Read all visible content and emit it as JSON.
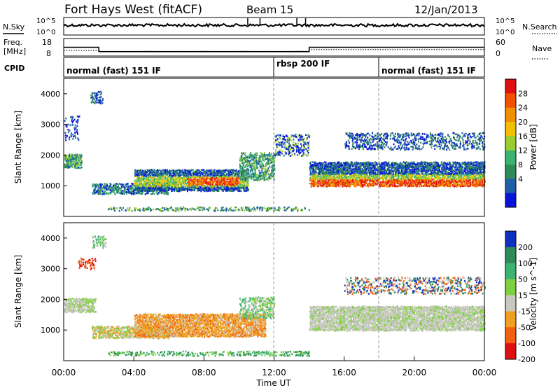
{
  "header": {
    "title": "Fort Hays West (fitACF)",
    "beam": "Beam 15",
    "date": "12/Jan/2013"
  },
  "noise_panel": {
    "left_label": "N.Sky",
    "left_ticks": [
      "10^5",
      "10^0"
    ],
    "right_ticks": [
      "10^5",
      "10^0"
    ],
    "right_label": "N.Search"
  },
  "freq_panel": {
    "label_line1": "Freq.",
    "label_line2": "[MHz]",
    "left_ticks": [
      "18",
      "8"
    ],
    "right_ticks": [
      "60",
      "0"
    ],
    "right_label": "Nave",
    "cpid_label": "CPID"
  },
  "cpid_segments": [
    {
      "label": "normal (fast) 151 IF",
      "start_hour": 0
    },
    {
      "label": "rbsp 200 IF",
      "start_hour": 12
    },
    {
      "label": "normal (fast) 151 IF",
      "start_hour": 18
    }
  ],
  "range_axis": {
    "label": "Slant Range [km]",
    "ticks": [
      "4000",
      "3000",
      "2000",
      "1000"
    ]
  },
  "time_axis": {
    "label": "Time UT",
    "ticks": [
      "00:00",
      "04:00",
      "08:00",
      "12:00",
      "16:00",
      "20:00",
      "00:00"
    ]
  },
  "power_scale": {
    "label": "Power [dB]",
    "ticks": [
      "28",
      "24",
      "20",
      "16",
      "12",
      "8",
      "4"
    ],
    "colors": [
      "#e01010",
      "#f05000",
      "#f09000",
      "#f0c000",
      "#9acd32",
      "#3cb371",
      "#2e8b57",
      "#1e5fa8",
      "#0a14d8"
    ]
  },
  "velocity_scale": {
    "label": "Velocity [m s^-1]",
    "ticks": [
      "200",
      "100",
      "50",
      "15",
      "-15",
      "-50",
      "-100",
      "-200"
    ],
    "colors": [
      "#1030c0",
      "#2e8b57",
      "#3cb371",
      "#7fd040",
      "#c8c8c0",
      "#f0a020",
      "#f06010",
      "#e01010"
    ]
  },
  "chart_data": [
    {
      "type": "line",
      "title": "Fort Hays West (fitACF)",
      "xlabel": "Time UT",
      "x_range_hours": [
        0,
        24
      ],
      "series": [
        {
          "name": "N.Sky",
          "scale": "log",
          "range": [
            1,
            100000
          ]
        },
        {
          "name": "N.Search",
          "range": [
            1,
            100000
          ]
        }
      ]
    },
    {
      "type": "line",
      "xlabel": "Time UT",
      "ylabel": "Freq. [MHz]",
      "x": [
        0,
        2,
        2.01,
        14,
        14.01,
        24
      ],
      "series": [
        {
          "name": "Freq.",
          "values": [
            13,
            13,
            10.5,
            10.5,
            13,
            13
          ],
          "ylim": [
            8,
            18
          ]
        },
        {
          "name": "Nave",
          "values": [
            19,
            19,
            16,
            16,
            22,
            22
          ],
          "ylim": [
            0,
            60
          ]
        }
      ]
    },
    {
      "type": "heatmap",
      "title": "Power [dB]",
      "xlabel": "Time UT",
      "ylabel": "Slant Range [km]",
      "xlim": [
        0,
        24
      ],
      "ylim": [
        0,
        4500
      ],
      "zlim": [
        0,
        30
      ],
      "features": [
        {
          "name": "early range band",
          "start_hour": 0,
          "end_hour": 2.5,
          "range_km": [
            1600,
            2100
          ],
          "power_db": [
            8,
            16
          ]
        },
        {
          "name": "morning-midday scatter",
          "start_hour": 2,
          "end_hour": 12,
          "range_km": [
            700,
            1500
          ],
          "power_db": [
            8,
            28
          ]
        },
        {
          "name": "afternoon-evening scatter",
          "start_hour": 14,
          "end_hour": 24,
          "range_km": [
            1000,
            1800
          ],
          "power_db": [
            8,
            28
          ]
        },
        {
          "name": "high range band",
          "start_hour": 16,
          "end_hour": 24,
          "range_km": [
            2200,
            2800
          ],
          "power_db": [
            4,
            10
          ]
        }
      ]
    },
    {
      "type": "heatmap",
      "title": "Velocity [m s^-1]",
      "xlabel": "Time UT",
      "ylabel": "Slant Range [km]",
      "xlim": [
        0,
        24
      ],
      "ylim": [
        0,
        4500
      ],
      "zlim": [
        -200,
        200
      ],
      "features": [
        {
          "name": "early ground scatter",
          "start_hour": 0,
          "end_hour": 2.5,
          "range_km": [
            1600,
            2100
          ],
          "velocity": [
            -15,
            15
          ]
        },
        {
          "name": "morning-midday flow",
          "start_hour": 2,
          "end_hour": 12,
          "range_km": [
            700,
            1500
          ],
          "velocity": [
            -50,
            -15
          ]
        },
        {
          "name": "afternoon-evening ground scatter",
          "start_hour": 14,
          "end_hour": 24,
          "range_km": [
            1000,
            1800
          ],
          "velocity": [
            -15,
            15
          ]
        }
      ]
    }
  ]
}
